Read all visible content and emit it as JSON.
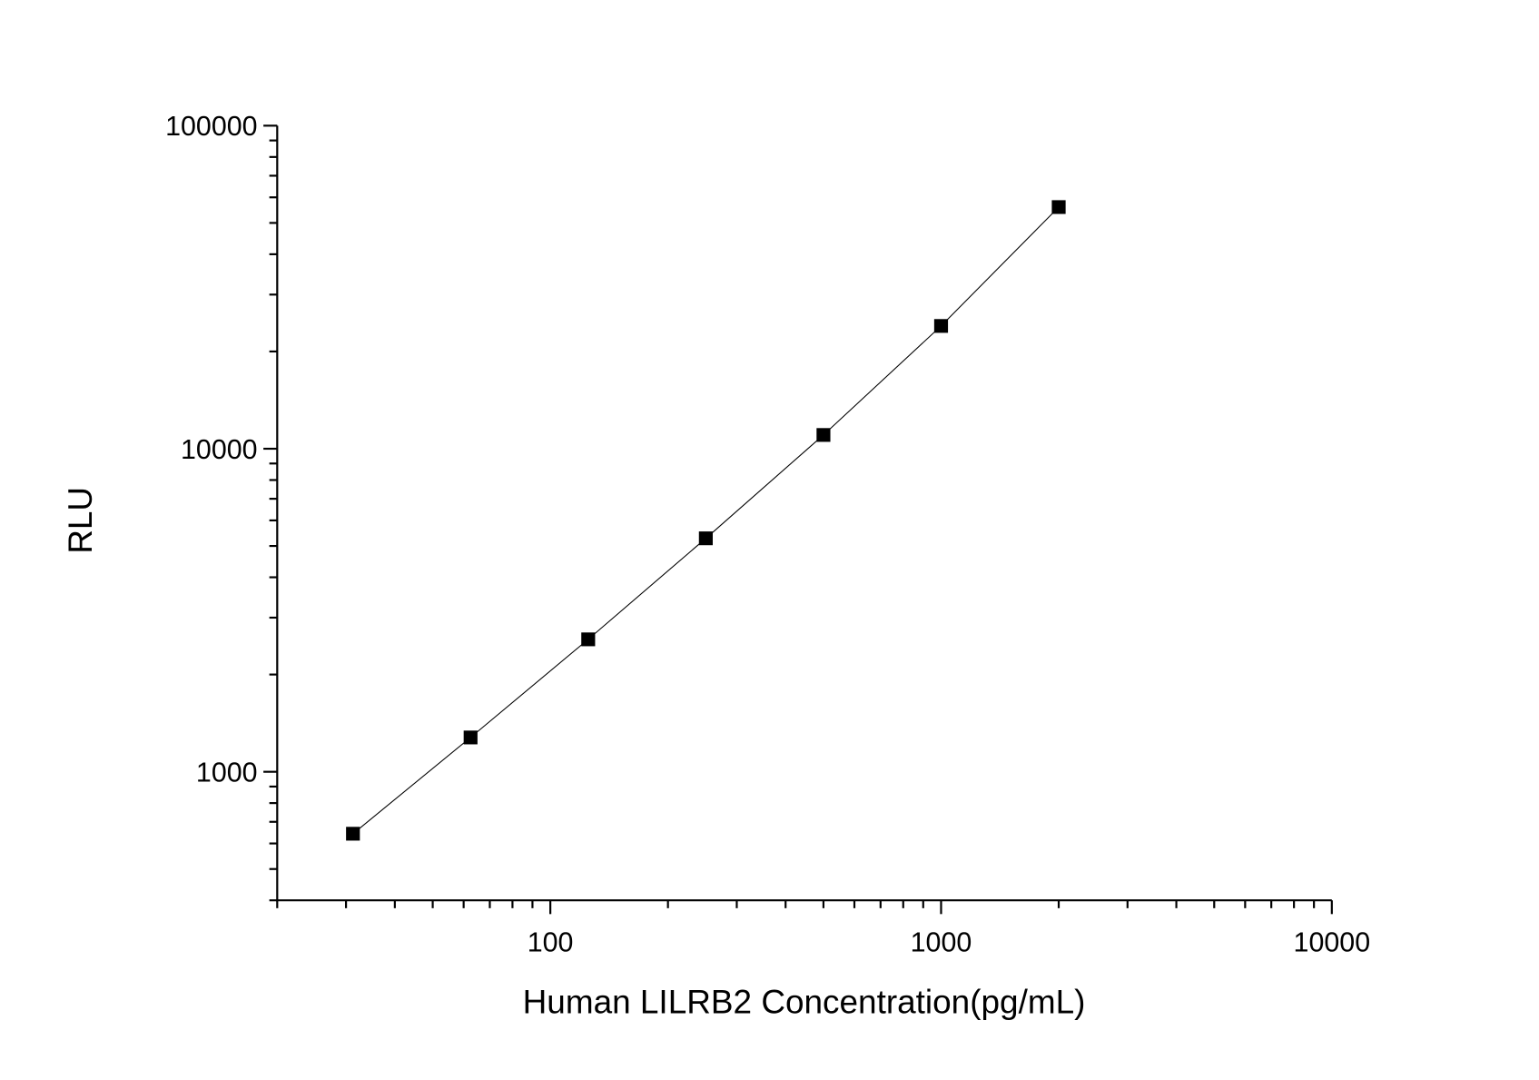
{
  "chart_data": {
    "type": "line",
    "title": "",
    "xlabel": "Human LILRB2 Concentration(pg/mL)",
    "ylabel": "RLU",
    "xscale": "log",
    "yscale": "log",
    "xlim": [
      20,
      10000
    ],
    "ylim": [
      400,
      100000
    ],
    "x_ticks": [
      100,
      1000,
      10000
    ],
    "x_tick_labels": [
      "100",
      "1000",
      "10000"
    ],
    "y_ticks": [
      1000,
      10000,
      100000
    ],
    "y_tick_labels": [
      "1000",
      "10000",
      "100000"
    ],
    "grid": false,
    "marker": "square",
    "color": "#000000",
    "series": [
      {
        "x": [
          31.25,
          62.5,
          125,
          250,
          500,
          1000,
          2000
        ],
        "y": [
          643,
          1277,
          2570,
          5280,
          11030,
          23990,
          55980
        ]
      }
    ]
  }
}
